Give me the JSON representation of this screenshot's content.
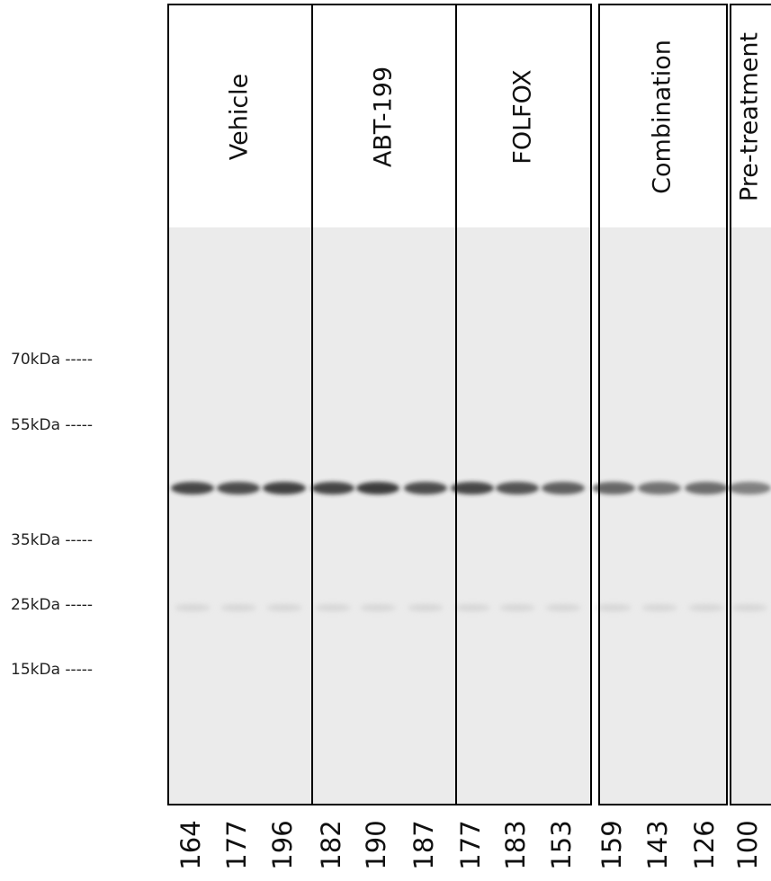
{
  "markers": [
    "70kDa -----",
    "55kDa -----",
    "35kDa -----",
    "25kDa -----",
    "15kDa -----"
  ],
  "groups": [
    {
      "label": "Vehicle",
      "lanes": [
        "164",
        "177",
        "196"
      ]
    },
    {
      "label": "ABT-199",
      "lanes": [
        "182",
        "190",
        "187"
      ]
    },
    {
      "label": "FOLFOX",
      "lanes": [
        "177",
        "183",
        "153"
      ]
    },
    {
      "label": "Combination",
      "lanes": [
        "159",
        "143",
        "126"
      ]
    },
    {
      "label": "Pre-treatment",
      "lanes": [
        "100"
      ]
    }
  ]
}
